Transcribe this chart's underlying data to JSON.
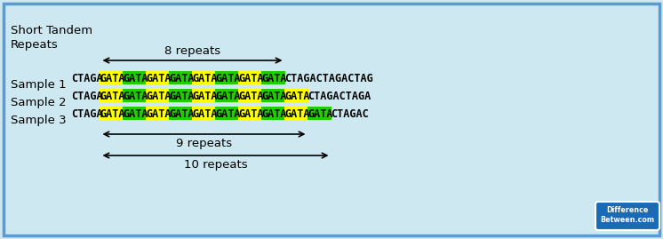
{
  "bg_color": "#cde8f0",
  "border_color": "#5b9bd5",
  "yellow": "#ffff00",
  "green": "#22cc00",
  "text_color": "#000000",
  "samples": [
    {
      "label": "Sample 1",
      "prefix": "CTAGA",
      "repeat_unit": "GATA",
      "n_repeats": 8,
      "suffix": "CTAGACTAGACTAG"
    },
    {
      "label": "Sample 2",
      "prefix": "CTAGA",
      "repeat_unit": "GATA",
      "n_repeats": 9,
      "suffix": "CTAGACTAGA"
    },
    {
      "label": "Sample 3",
      "prefix": "CTAGA",
      "repeat_unit": "GATA",
      "n_repeats": 10,
      "suffix": "CTAGAC"
    }
  ],
  "arrows": [
    {
      "label": "8 repeats",
      "n_repeats": 8
    },
    {
      "label": "9 repeats",
      "n_repeats": 9
    },
    {
      "label": "10 repeats",
      "n_repeats": 10
    }
  ],
  "watermark_line1": "Difference",
  "watermark_line2": "Between",
  "watermark_line3": ".com"
}
